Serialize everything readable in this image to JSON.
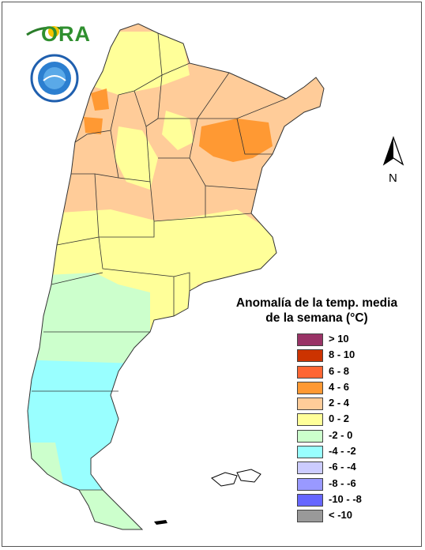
{
  "logo": {
    "text": "ORA"
  },
  "north_arrow": {
    "label": "N"
  },
  "legend": {
    "title_line1": "Anomalía de la temp. media",
    "title_line2": "de la semana (°C)",
    "items": [
      {
        "label": "> 10",
        "color": "#993366"
      },
      {
        "label": "8 - 10",
        "color": "#cc3300"
      },
      {
        "label": "6 - 8",
        "color": "#ff6633"
      },
      {
        "label": "4 - 6",
        "color": "#ff9933"
      },
      {
        "label": "2 - 4",
        "color": "#ffcc99"
      },
      {
        "label": "0 - 2",
        "color": "#ffff99"
      },
      {
        "label": "-2 - 0",
        "color": "#ccffcc"
      },
      {
        "label": "-4 - -2",
        "color": "#99ffff"
      },
      {
        "label": "-6 - -4",
        "color": "#ccccff"
      },
      {
        "label": "-8 - -6",
        "color": "#9999ff"
      },
      {
        "label": "-10 - -8",
        "color": "#6666ff"
      },
      {
        "label": "< -10",
        "color": "#999999"
      }
    ]
  },
  "map": {
    "colors": {
      "warm_2_4": "#ffcc99",
      "warm_4_6": "#ff9933",
      "mild_0_2": "#ffff99",
      "cool_m2_0": "#ccffcc",
      "cold_m4_m2": "#99ffff",
      "border": "#333333"
    }
  }
}
